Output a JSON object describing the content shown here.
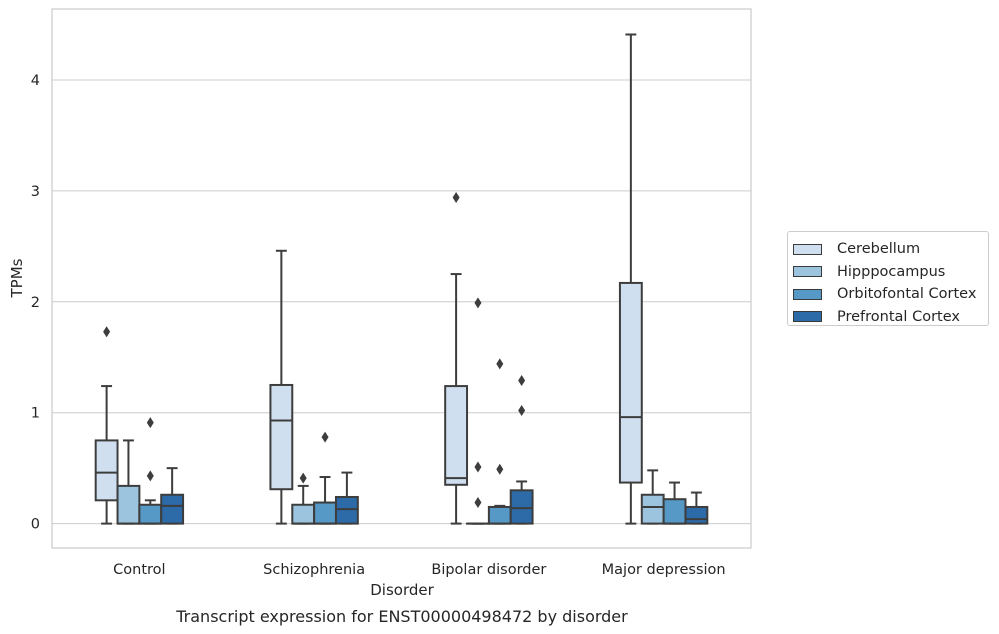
{
  "caption": "Transcript expression for ENST00000498472 by disorder",
  "chart_data": {
    "type": "box",
    "xlabel": "Disorder",
    "ylabel": "TPMs",
    "ylim": [
      -0.22,
      4.64
    ],
    "yticks": [
      0,
      1,
      2,
      3,
      4
    ],
    "grid": "horizontal",
    "legend_position": "right",
    "categories": [
      "Control",
      "Schizophrenia",
      "Bipolar disorder",
      "Major depression"
    ],
    "series": [
      {
        "name": "Cerebellum",
        "color": "#d0dff0",
        "boxes": [
          {
            "whisker_low": 0.0,
            "q1": 0.21,
            "median": 0.46,
            "q3": 0.75,
            "whisker_high": 1.24,
            "outliers": [
              1.73
            ]
          },
          {
            "whisker_low": 0.0,
            "q1": 0.31,
            "median": 0.93,
            "q3": 1.25,
            "whisker_high": 2.46,
            "outliers": []
          },
          {
            "whisker_low": 0.0,
            "q1": 0.35,
            "median": 0.41,
            "q3": 1.24,
            "whisker_high": 2.25,
            "outliers": [
              2.94
            ]
          },
          {
            "whisker_low": 0.0,
            "q1": 0.37,
            "median": 0.96,
            "q3": 2.17,
            "whisker_high": 4.41,
            "outliers": []
          }
        ]
      },
      {
        "name": "Hipppocampus",
        "color": "#9cc4df",
        "boxes": [
          {
            "whisker_low": 0.0,
            "q1": 0.0,
            "median": 0.0,
            "q3": 0.34,
            "whisker_high": 0.75,
            "outliers": []
          },
          {
            "whisker_low": 0.0,
            "q1": 0.0,
            "median": 0.0,
            "q3": 0.17,
            "whisker_high": 0.34,
            "outliers": [
              0.41
            ]
          },
          {
            "whisker_low": 0.0,
            "q1": 0.0,
            "median": 0.0,
            "q3": 0.0,
            "whisker_high": 0.0,
            "outliers": [
              0.19,
              0.51,
              1.99
            ]
          },
          {
            "whisker_low": 0.0,
            "q1": 0.0,
            "median": 0.15,
            "q3": 0.26,
            "whisker_high": 0.48,
            "outliers": []
          }
        ]
      },
      {
        "name": "Orbitofontal Cortex",
        "color": "#5698c6",
        "boxes": [
          {
            "whisker_low": 0.0,
            "q1": 0.0,
            "median": 0.0,
            "q3": 0.17,
            "whisker_high": 0.21,
            "outliers": [
              0.43,
              0.91
            ]
          },
          {
            "whisker_low": 0.0,
            "q1": 0.0,
            "median": 0.0,
            "q3": 0.19,
            "whisker_high": 0.42,
            "outliers": [
              0.78
            ]
          },
          {
            "whisker_low": 0.0,
            "q1": 0.0,
            "median": 0.0,
            "q3": 0.15,
            "whisker_high": 0.16,
            "outliers": [
              0.49,
              1.44
            ]
          },
          {
            "whisker_low": 0.0,
            "q1": 0.0,
            "median": 0.0,
            "q3": 0.22,
            "whisker_high": 0.37,
            "outliers": []
          }
        ]
      },
      {
        "name": "Prefrontal Cortex",
        "color": "#2c6aa8",
        "boxes": [
          {
            "whisker_low": 0.0,
            "q1": 0.0,
            "median": 0.16,
            "q3": 0.26,
            "whisker_high": 0.5,
            "outliers": []
          },
          {
            "whisker_low": 0.0,
            "q1": 0.0,
            "median": 0.13,
            "q3": 0.24,
            "whisker_high": 0.46,
            "outliers": []
          },
          {
            "whisker_low": 0.0,
            "q1": 0.0,
            "median": 0.14,
            "q3": 0.3,
            "whisker_high": 0.38,
            "outliers": [
              1.02,
              1.29
            ]
          },
          {
            "whisker_low": 0.0,
            "q1": 0.0,
            "median": 0.04,
            "q3": 0.15,
            "whisker_high": 0.28,
            "outliers": []
          }
        ]
      }
    ]
  }
}
